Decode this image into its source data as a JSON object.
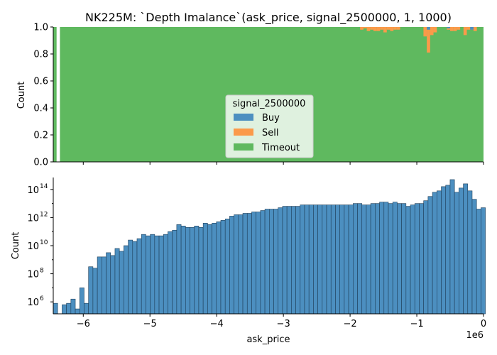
{
  "title": "NK225M: `Depth Imalance`(ask_price, signal_2500000, 1, 1000)",
  "colors": {
    "buy": "#4c8fc0",
    "sell": "#fb9a4a",
    "timeout": "#5fb95f",
    "edge": "#1f3f5a"
  },
  "chart_data": [
    {
      "type": "bar",
      "subtype": "stacked-proportion-histogram",
      "ylabel": "Count",
      "xlim": [
        -6.45,
        0
      ],
      "ylim": [
        0,
        1
      ],
      "yticks": [
        "0.0",
        "0.2",
        "0.4",
        "0.6",
        "0.8",
        "1.0"
      ],
      "legend": {
        "title": "signal_2500000",
        "placement": "center-bottom",
        "entries": [
          "Buy",
          "Sell",
          "Timeout"
        ]
      },
      "bin_width": 0.05,
      "timeout_ranges": [
        [
          -6.45,
          -6.4
        ],
        [
          -6.35,
          0
        ]
      ],
      "sell_bins": [
        {
          "x": -1.85,
          "value": 0.02
        },
        {
          "x": -1.8,
          "value": 0.01
        },
        {
          "x": -1.75,
          "value": 0.03
        },
        {
          "x": -1.7,
          "value": 0.02
        },
        {
          "x": -1.65,
          "value": 0.03
        },
        {
          "x": -1.6,
          "value": 0.03
        },
        {
          "x": -1.55,
          "value": 0.02
        },
        {
          "x": -1.5,
          "value": 0.04
        },
        {
          "x": -1.45,
          "value": 0.02
        },
        {
          "x": -1.4,
          "value": 0.03
        },
        {
          "x": -1.35,
          "value": 0.02
        },
        {
          "x": -1.3,
          "value": 0.02
        },
        {
          "x": -0.9,
          "value": 0.07
        },
        {
          "x": -0.85,
          "value": 0.19
        },
        {
          "x": -0.8,
          "value": 0.06
        },
        {
          "x": -0.75,
          "value": 0.04
        },
        {
          "x": -0.55,
          "value": 0.02
        },
        {
          "x": -0.5,
          "value": 0.03
        },
        {
          "x": -0.45,
          "value": 0.03
        },
        {
          "x": -0.4,
          "value": 0.02
        },
        {
          "x": -0.3,
          "value": 0.06
        },
        {
          "x": -0.25,
          "value": 0.02
        },
        {
          "x": -0.2,
          "value": 0.02
        },
        {
          "x": -0.15,
          "value": 0.03
        }
      ],
      "buy_bins": [
        {
          "x": -0.85,
          "value": 0.02
        },
        {
          "x": -0.55,
          "value": 0.01
        },
        {
          "x": -0.2,
          "value": 0.02
        }
      ]
    },
    {
      "type": "bar",
      "subtype": "histogram",
      "scale": "log",
      "xlabel": "ask_price",
      "ylabel": "Count",
      "x_offset_label": "1e6",
      "xlim": [
        -6.45,
        0
      ],
      "ylim_exp": [
        5.15,
        14.85
      ],
      "xticks": [
        -6,
        -5,
        -4,
        -3,
        -2,
        -1,
        0
      ],
      "xtick_labels": [
        "−6",
        "−5",
        "−4",
        "−3",
        "−2",
        "−1",
        "0"
      ],
      "ytick_exps": [
        6,
        8,
        10,
        12,
        14
      ],
      "ytick_base": "10",
      "bin_width": 0.0661,
      "bin_start": -6.45,
      "log10_counts": [
        5.9,
        null,
        5.8,
        5.9,
        6.2,
        5.5,
        7.0,
        5.9,
        8.5,
        8.4,
        9.2,
        9.2,
        9.5,
        9.3,
        9.8,
        9.6,
        10.0,
        10.4,
        10.3,
        10.5,
        10.8,
        10.7,
        10.8,
        10.7,
        10.7,
        10.8,
        11.0,
        11.1,
        11.5,
        11.4,
        11.3,
        11.3,
        11.4,
        11.3,
        11.6,
        11.5,
        11.6,
        11.7,
        11.8,
        11.9,
        12.1,
        12.2,
        12.2,
        12.3,
        12.3,
        12.4,
        12.4,
        12.5,
        12.6,
        12.6,
        12.6,
        12.7,
        12.8,
        12.8,
        12.8,
        12.8,
        12.9,
        12.9,
        12.9,
        12.9,
        12.9,
        12.9,
        12.9,
        12.9,
        12.9,
        12.9,
        12.9,
        12.9,
        13.0,
        13.0,
        12.9,
        12.9,
        13.0,
        13.0,
        13.1,
        13.1,
        13.0,
        13.1,
        13.0,
        13.0,
        12.8,
        12.9,
        13.0,
        13.0,
        13.2,
        13.5,
        13.8,
        13.9,
        14.2,
        14.3,
        14.7,
        13.8,
        14.1,
        14.4,
        13.9,
        13.3,
        12.6,
        12.7
      ]
    }
  ]
}
